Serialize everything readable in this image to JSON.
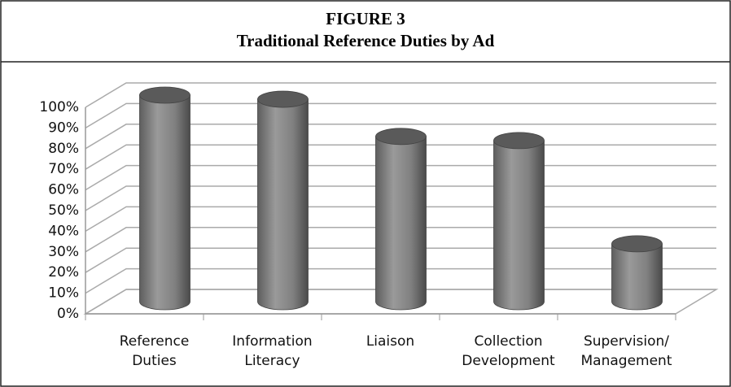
{
  "chart_data": {
    "type": "bar3d",
    "title": "FIGURE 3",
    "subtitle": "Traditional Reference Duties by Ad",
    "categories": [
      "Reference\nDuties",
      "Information\nLiteracy",
      "Liaison",
      "Collection\nDevelopment",
      "Supervision/\nManagement"
    ],
    "values": [
      100,
      98,
      80,
      78,
      28
    ],
    "color": "#7a7a7a",
    "ylim": [
      0,
      100
    ],
    "yticks": [
      {
        "value": 0,
        "label": "0%"
      },
      {
        "value": 10,
        "label": "10%"
      },
      {
        "value": 20,
        "label": "20%"
      },
      {
        "value": 30,
        "label": "30%"
      },
      {
        "value": 40,
        "label": "40%"
      },
      {
        "value": 50,
        "label": "50%"
      },
      {
        "value": 60,
        "label": "60%"
      },
      {
        "value": 70,
        "label": "70%"
      },
      {
        "value": 80,
        "label": "80%"
      },
      {
        "value": 90,
        "label": "90%"
      },
      {
        "value": 100,
        "label": "100%"
      }
    ],
    "grid": true
  }
}
